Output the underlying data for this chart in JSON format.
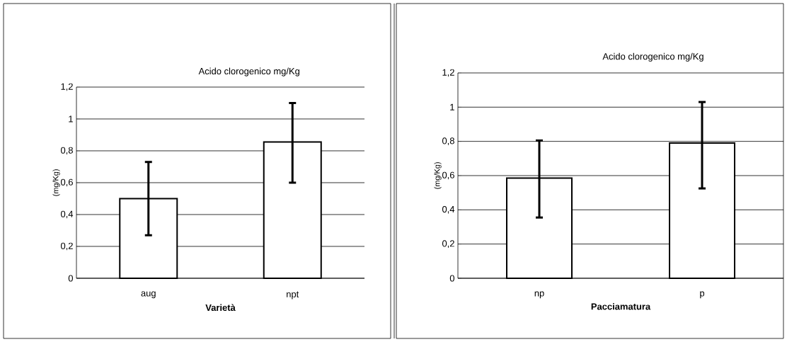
{
  "chart_data": [
    {
      "type": "bar",
      "title": "Acido clorogenico mg/Kg",
      "xlabel": "Varietà",
      "ylabel": "(mg/Kg)",
      "categories": [
        "aug",
        "npt"
      ],
      "values": [
        0.5,
        0.855
      ],
      "errors": [
        [
          0.27,
          0.73
        ],
        [
          0.6,
          1.1
        ]
      ],
      "color": "#ffffff",
      "ylim": [
        0,
        1.2
      ],
      "yticks": [
        0,
        {
          "value": 0.2,
          "label": "0,2"
        },
        {
          "value": 0.4,
          "label": "0,4"
        },
        {
          "value": 0.6,
          "label": "0,6"
        },
        {
          "value": 0.8,
          "label": "0,8"
        },
        1,
        {
          "value": 1.2,
          "label": "1,2"
        }
      ],
      "grid": "y"
    },
    {
      "type": "bar",
      "title": "Acido clorogenico mg/Kg",
      "xlabel": "Pacciamatura",
      "ylabel": "(mg/Kg)",
      "categories": [
        "np",
        "p"
      ],
      "values": [
        0.585,
        0.79
      ],
      "errors": [
        [
          0.355,
          0.805
        ],
        [
          0.525,
          1.03
        ]
      ],
      "color": "#ffffff",
      "ylim": [
        0,
        1.2
      ],
      "yticks": [
        0,
        {
          "value": 0.2,
          "label": "0,2"
        },
        {
          "value": 0.4,
          "label": "0,4"
        },
        {
          "value": 0.6,
          "label": "0,6"
        },
        {
          "value": 0.8,
          "label": "0,8"
        },
        1,
        {
          "value": 1.2,
          "label": "1,2"
        }
      ],
      "grid": "y"
    }
  ]
}
